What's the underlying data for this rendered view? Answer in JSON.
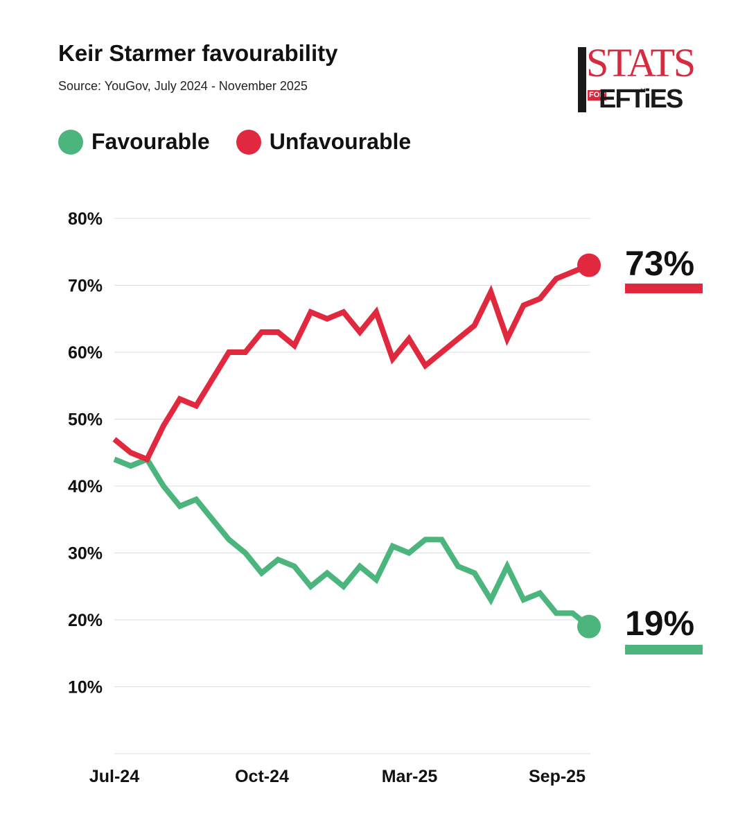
{
  "title": "Keir Starmer favourability",
  "subtitle": "Source: YouGov, July 2024 - November 2025",
  "logo": {
    "top": "STATS",
    "for": "FOR",
    "bottom": "EFTiES"
  },
  "colors": {
    "favourable": "#4cb57e",
    "unfavourable": "#e0293f",
    "grid": "#dddddd",
    "text": "#111111"
  },
  "end_labels": {
    "unfavourable": "73%",
    "favourable": "19%"
  },
  "chart_data": {
    "type": "line",
    "title": "Keir Starmer favourability",
    "subtitle": "Source: YouGov, July 2024 - November 2025",
    "xlabel": "",
    "ylabel": "",
    "ylim": [
      0,
      80
    ],
    "yticks": [
      10,
      20,
      30,
      40,
      50,
      60,
      70,
      80
    ],
    "ytick_labels": [
      "10%",
      "20%",
      "30%",
      "40%",
      "50%",
      "60%",
      "70%",
      "80%"
    ],
    "xtick_labels": [
      "Jul-24",
      "Oct-24",
      "Mar-25",
      "Sep-25"
    ],
    "xtick_positions": [
      0,
      9,
      18,
      27
    ],
    "grid": true,
    "legend": "top-left",
    "series": [
      {
        "name": "Favourable",
        "color": "#4cb57e",
        "values": [
          44,
          43,
          44,
          40,
          37,
          38,
          35,
          32,
          30,
          27,
          29,
          28,
          25,
          27,
          25,
          28,
          26,
          31,
          30,
          32,
          32,
          28,
          27,
          23,
          28,
          23,
          24,
          21,
          21,
          19
        ],
        "end_label": "19%"
      },
      {
        "name": "Unfavourable",
        "color": "#e0293f",
        "values": [
          47,
          45,
          44,
          49,
          53,
          52,
          56,
          60,
          60,
          63,
          63,
          61,
          66,
          65,
          66,
          63,
          66,
          59,
          62,
          58,
          60,
          62,
          64,
          69,
          62,
          67,
          68,
          71,
          72,
          73
        ],
        "end_label": "73%"
      }
    ]
  }
}
